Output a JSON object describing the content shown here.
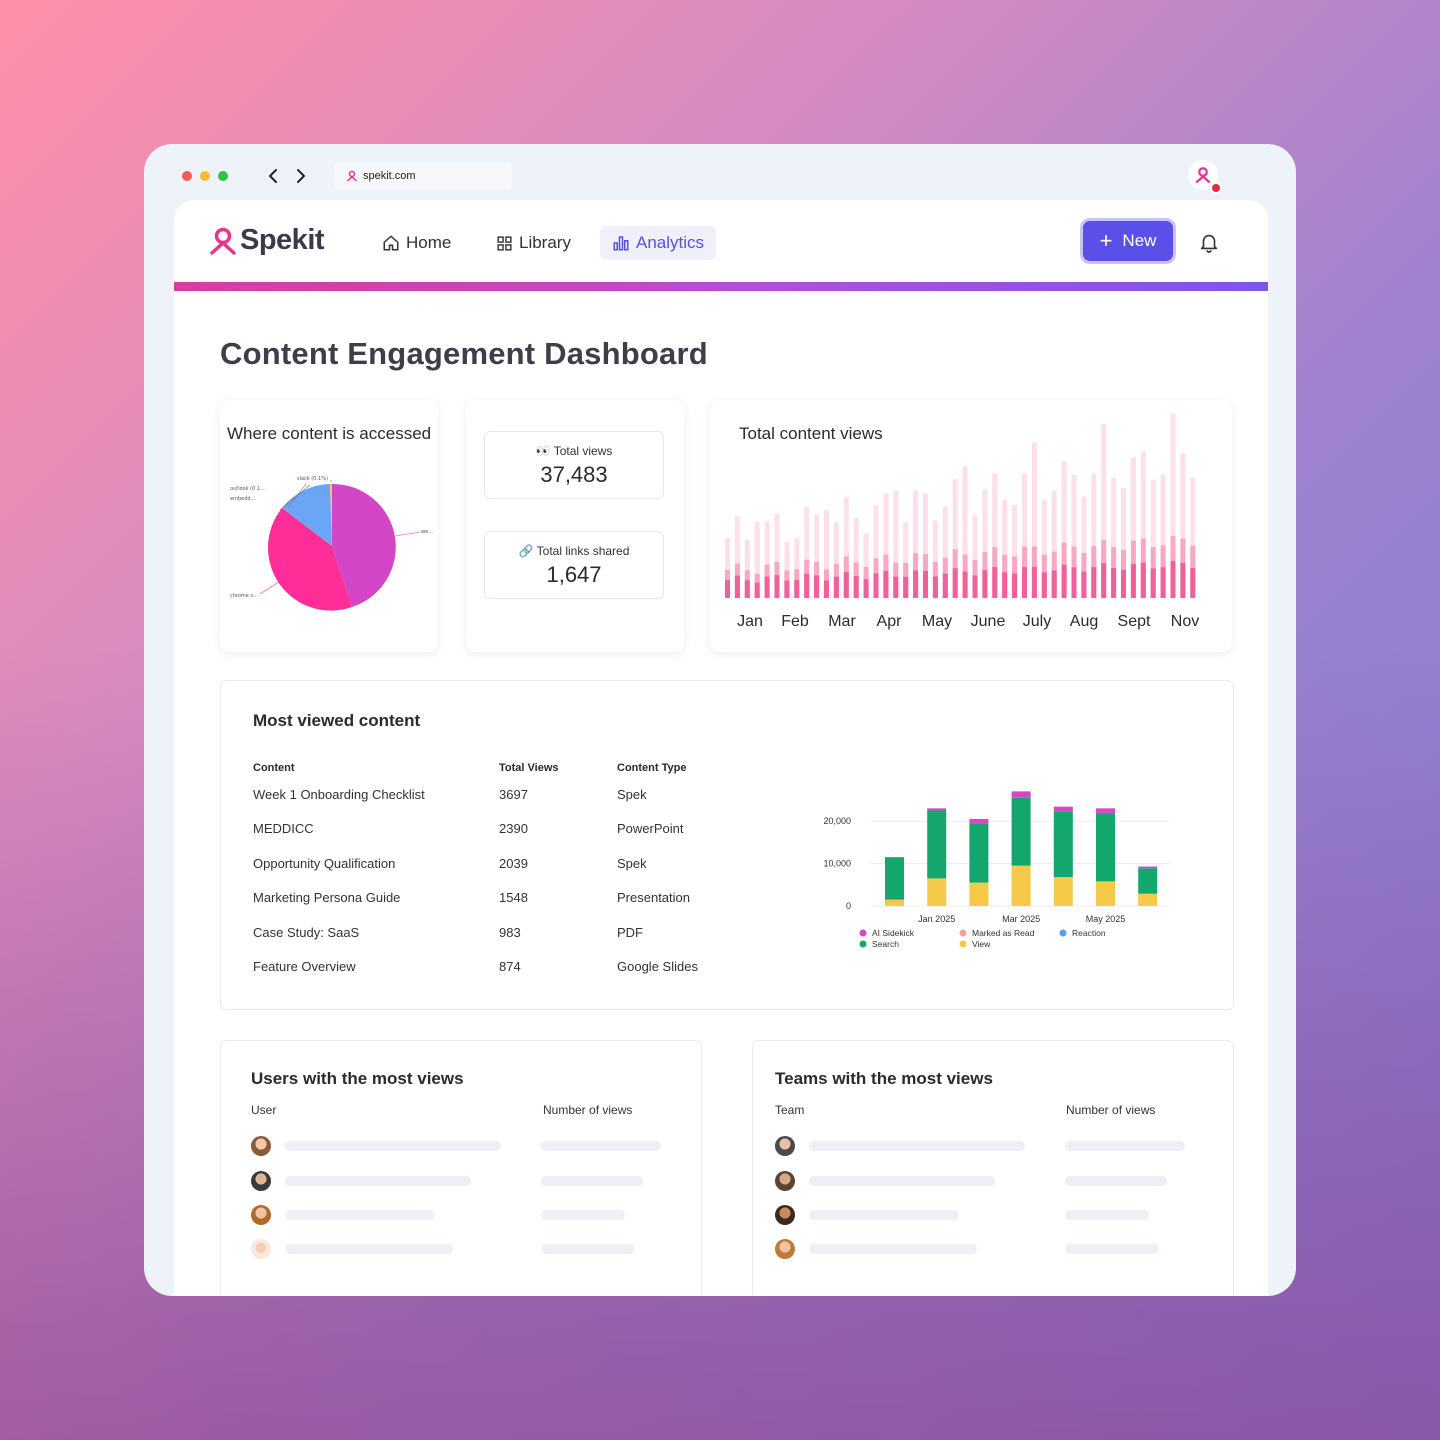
{
  "browser": {
    "url": "spekit.com",
    "window_dots": [
      "#f35b54",
      "#f6be2f",
      "#2fc145"
    ]
  },
  "nav": {
    "logo": "Spekit",
    "home": "Home",
    "library": "Library",
    "analytics": "Analytics",
    "new_button": "New"
  },
  "colors": {
    "accent": "#5a4fe8",
    "brand_pink": "#e8358c"
  },
  "page_title": "Content Engagement Dashboard",
  "where_accessed": {
    "title": "Where content is accessed",
    "labels": {
      "slack": "slack (0.1%)",
      "outlook": "outlook (0.1...",
      "embed": "embedd...",
      "web": "we...",
      "chrome": "chrome s..."
    }
  },
  "stats": {
    "total_views_label": "Total views",
    "total_views_value": "37,483",
    "links_label": "Total links shared",
    "links_value": "1,647"
  },
  "total_views_chart": {
    "title": "Total content views",
    "months": [
      "Jan",
      "Feb",
      "Mar",
      "Apr",
      "May",
      "June",
      "July",
      "Aug",
      "Sept",
      "Nov"
    ]
  },
  "most_viewed": {
    "title": "Most viewed content",
    "headers": [
      "Content",
      "Total Views",
      "Content Type"
    ],
    "rows": [
      [
        "Week 1 Onboarding Checklist",
        "3697",
        "Spek"
      ],
      [
        "MEDDICC",
        "2390",
        "PowerPoint"
      ],
      [
        "Opportunity Qualification",
        "2039",
        "Spek"
      ],
      [
        "Marketing Persona Guide",
        "1548",
        "Presentation"
      ],
      [
        "Case Study: SaaS",
        "983",
        "PDF"
      ],
      [
        "Feature Overview",
        "874",
        "Google Slides"
      ]
    ]
  },
  "chart_data": {
    "type": "bar",
    "stacked": true,
    "categories": [
      "Jan 2025",
      "Feb 2025",
      "Mar 2025",
      "Apr 2025",
      "May 2025",
      "Jun 2025",
      "Jul 2025"
    ],
    "x_tick_labels": [
      "Jan 2025",
      "Mar 2025",
      "May 2025"
    ],
    "y_ticks": [
      "0",
      "10,000",
      "20,000"
    ],
    "ylim": [
      0,
      26000
    ],
    "series": [
      {
        "name": "View",
        "color": "#f7c948",
        "values": [
          1500,
          6500,
          5500,
          9500,
          6800,
          5800,
          2900
        ]
      },
      {
        "name": "Search",
        "color": "#13a66d",
        "values": [
          10000,
          16000,
          14000,
          16000,
          15500,
          16000,
          6000
        ]
      },
      {
        "name": "AI Sidekick",
        "color": "#d647c6",
        "values": [
          0,
          500,
          1000,
          1500,
          1100,
          1200,
          400
        ]
      },
      {
        "name": "Marked as Read",
        "color": "#f4a0a0",
        "values": [
          0,
          0,
          0,
          0,
          0,
          0,
          0
        ]
      },
      {
        "name": "Reaction",
        "color": "#5b9cf3",
        "values": [
          0,
          0,
          0,
          0,
          0,
          0,
          0
        ]
      }
    ],
    "legend": [
      "AI Sidekick",
      "Marked as Read",
      "Reaction",
      "Search",
      "View"
    ]
  },
  "users_card": {
    "title": "Users with the most views",
    "col_user": "User",
    "col_views": "Number of views"
  },
  "teams_card": {
    "title": "Teams with the most views",
    "col_team": "Team",
    "col_views": "Number of views"
  }
}
